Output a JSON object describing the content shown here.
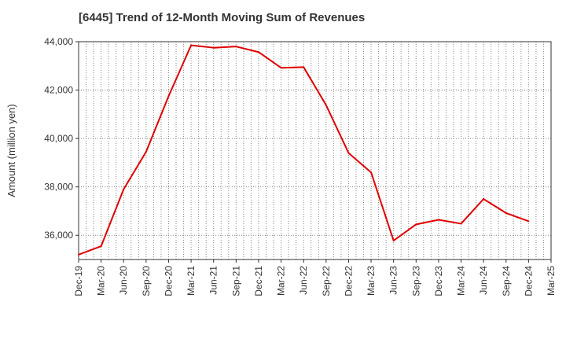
{
  "chart_data": {
    "type": "line",
    "title": "[6445]  Trend of 12-Month Moving Sum of Revenues",
    "xlabel": "",
    "ylabel": "Amount (million yen)",
    "ylim": [
      35000,
      44000
    ],
    "yticks": [
      36000,
      38000,
      40000,
      42000,
      44000
    ],
    "ytick_labels": [
      "36,000",
      "38,000",
      "40,000",
      "42,000",
      "44,000"
    ],
    "x_tick_labels": [
      "Dec-19",
      "Mar-20",
      "Jun-20",
      "Sep-20",
      "Dec-20",
      "Mar-21",
      "Jun-21",
      "Sep-21",
      "Dec-21",
      "Mar-22",
      "Jun-22",
      "Sep-22",
      "Dec-22",
      "Mar-23",
      "Jun-23",
      "Sep-23",
      "Dec-23",
      "Mar-24",
      "Jun-24",
      "Sep-24",
      "Dec-24",
      "Mar-25"
    ],
    "grid": true,
    "series": [
      {
        "color": "#e00000",
        "x": [
          "Dec-19",
          "Mar-20",
          "Jun-20",
          "Sep-20",
          "Dec-20",
          "Mar-21",
          "Jun-21",
          "Sep-21",
          "Dec-21",
          "Mar-22",
          "Jun-22",
          "Sep-22",
          "Dec-22",
          "Mar-23",
          "Jun-23",
          "Sep-23",
          "Dec-23",
          "Mar-24",
          "Jun-24",
          "Sep-24",
          "Dec-24"
        ],
        "values": [
          35200,
          35550,
          37900,
          39450,
          41750,
          43850,
          43750,
          43800,
          43570,
          42920,
          42950,
          41380,
          39400,
          38600,
          35780,
          36450,
          36640,
          36480,
          37500,
          36920,
          36580
        ]
      }
    ]
  }
}
